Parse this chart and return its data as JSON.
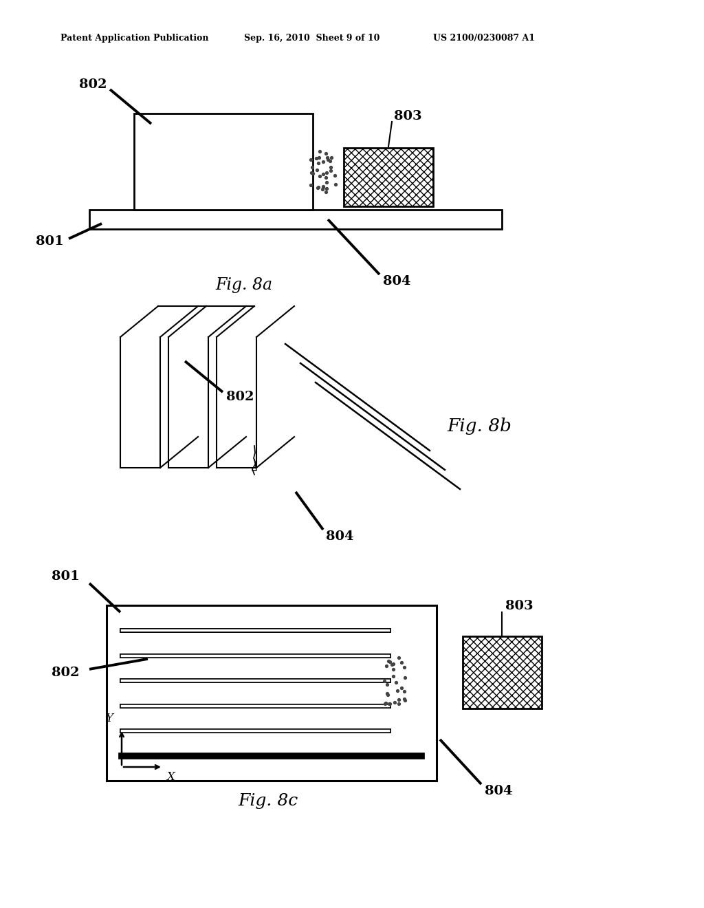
{
  "header_left": "Patent Application Publication",
  "header_center": "Sep. 16, 2010  Sheet 9 of 10",
  "header_right": "US 2100/0230087 A1",
  "fig8a_label": "Fig. 8a",
  "fig8b_label": "Fig. 8b",
  "fig8c_label": "Fig. 8c",
  "label_801": "801",
  "label_802": "802",
  "label_803": "803",
  "label_804": "804",
  "bg_color": "#ffffff",
  "line_color": "#000000"
}
